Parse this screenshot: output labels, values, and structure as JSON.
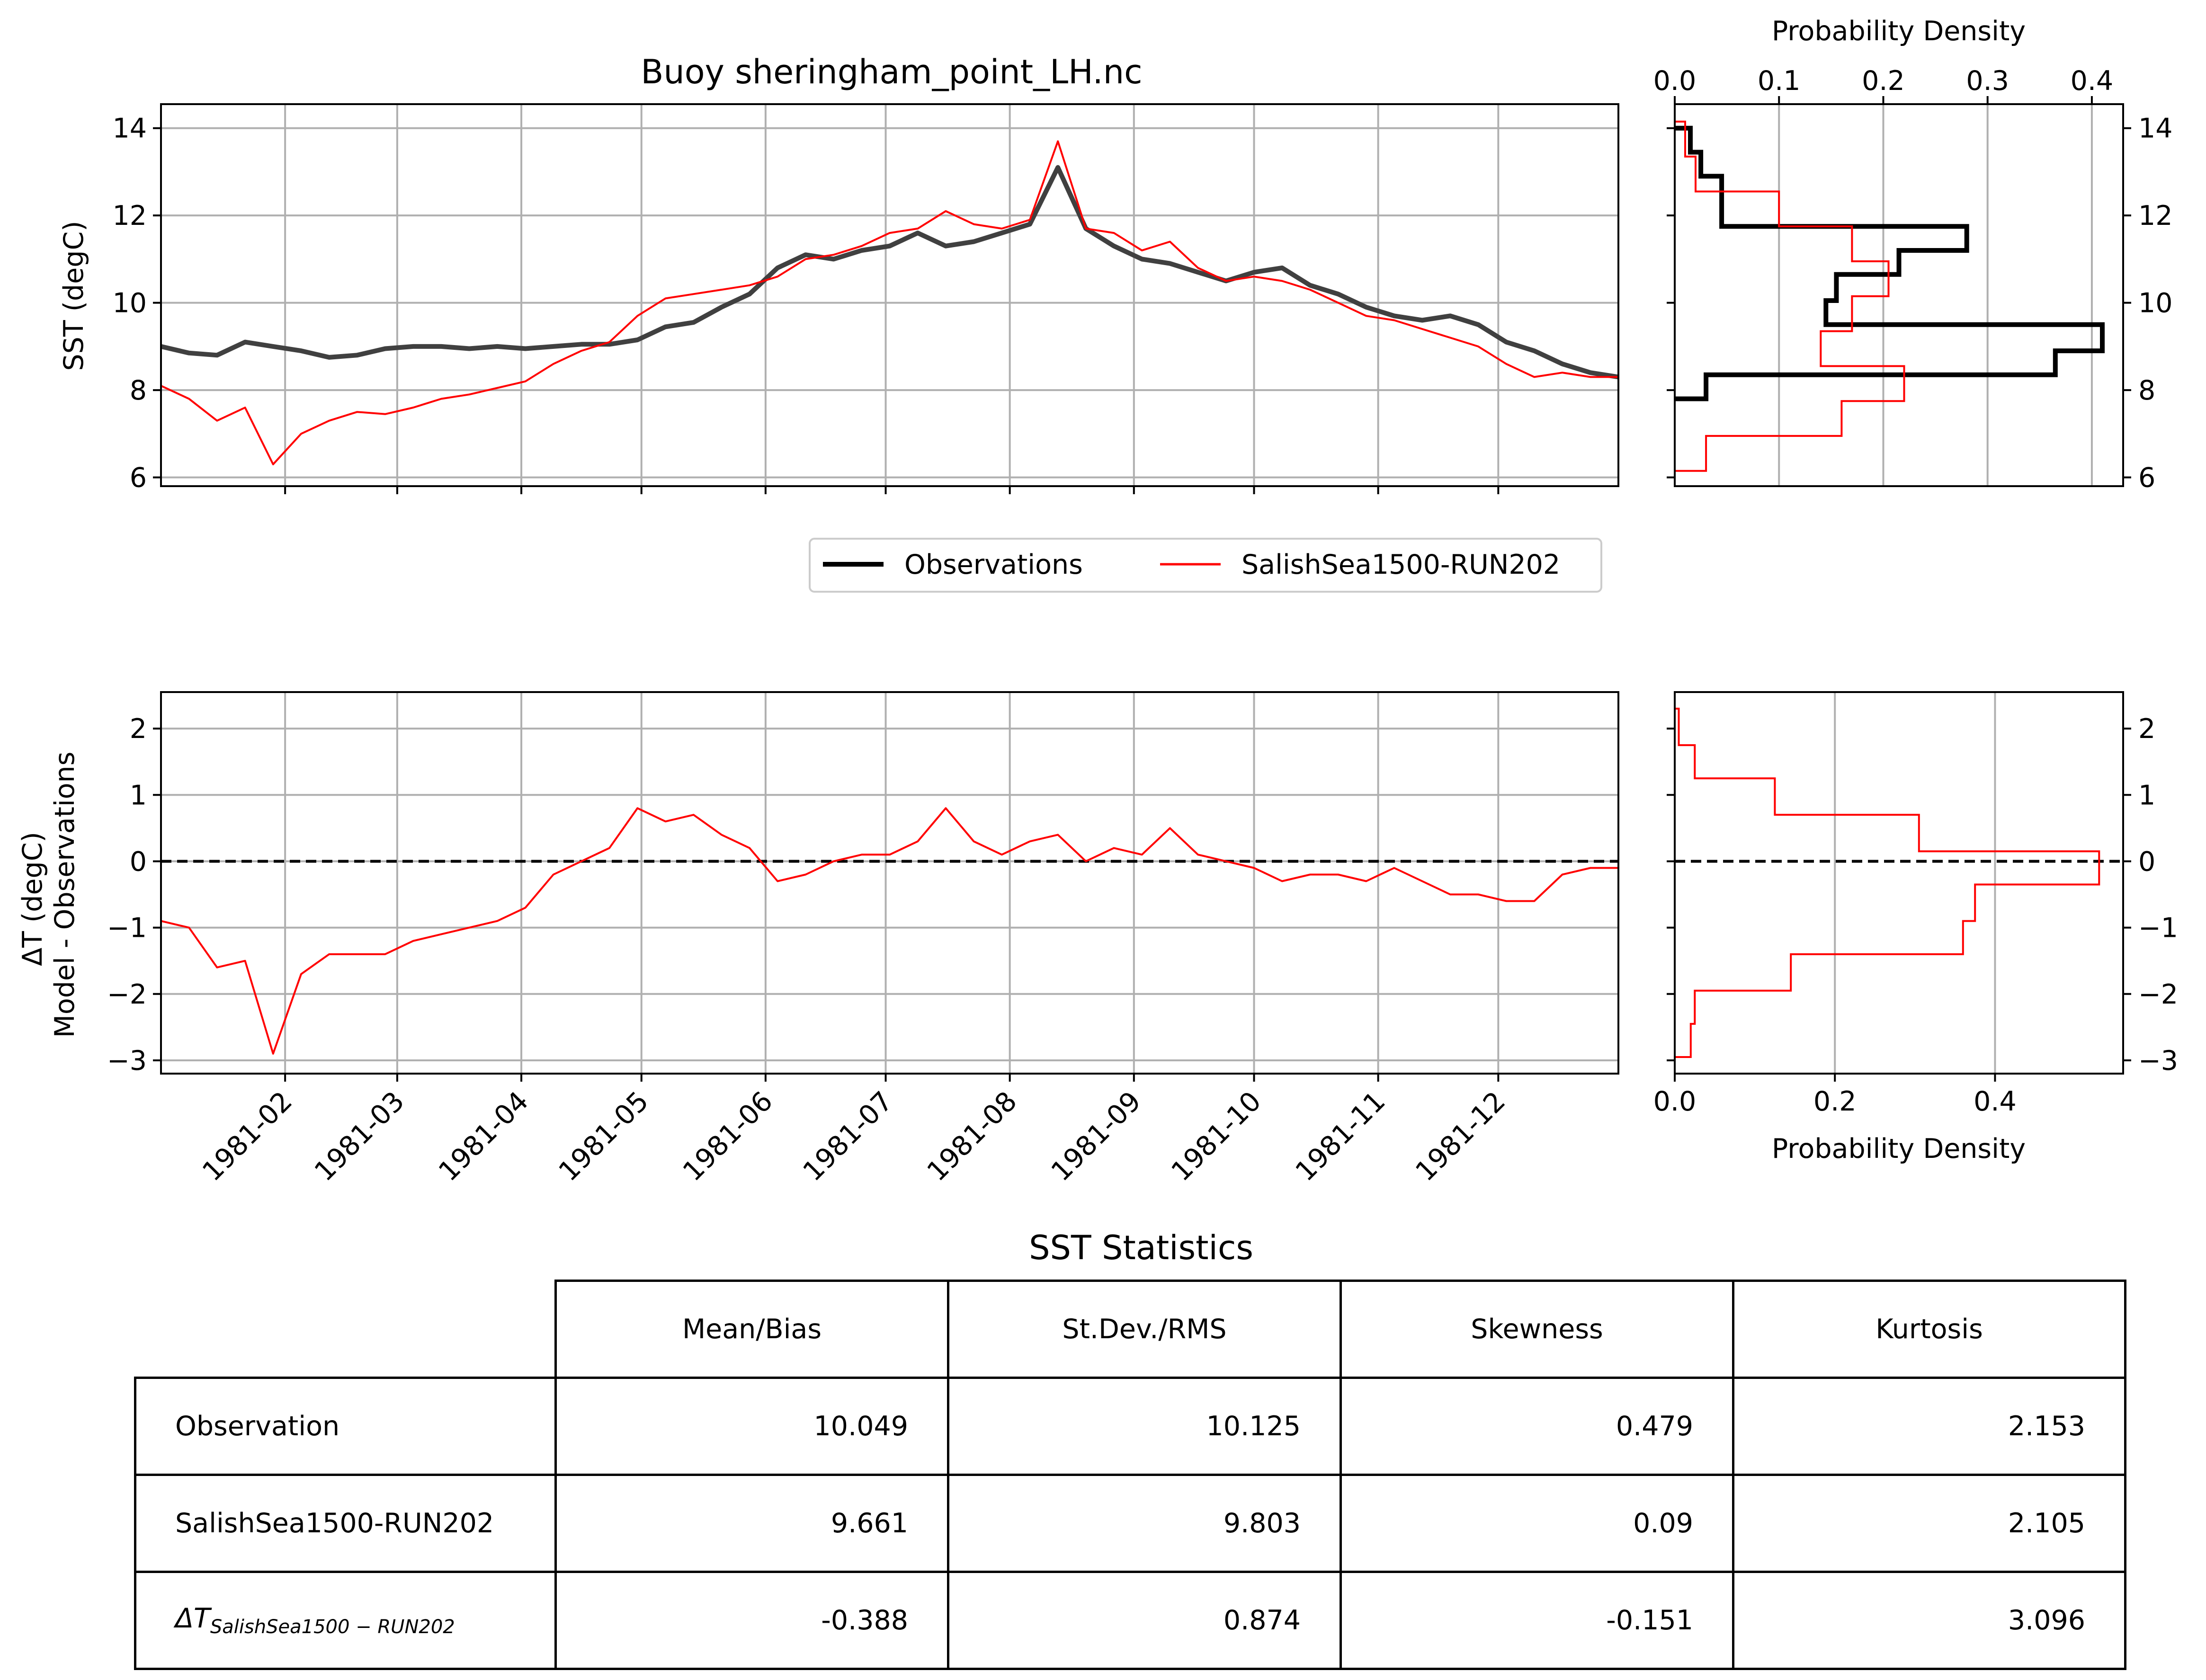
{
  "chart_data": [
    {
      "type": "line",
      "panel": "sst",
      "title": "Buoy sheringham_point_LH.nc",
      "ylabel": "SST (degC)",
      "xlabel": "",
      "x_range": [
        "1981-01-01",
        "1981-12-31"
      ],
      "ylim": [
        5.8,
        14.55
      ],
      "yticks": [
        "6",
        "8",
        "10",
        "12",
        "14"
      ],
      "grid": true,
      "legend_position": "below",
      "series": [
        {
          "name": "Observations",
          "color": "#404040",
          "x": [
            "1981-01-01",
            "1981-01-08",
            "1981-01-15",
            "1981-01-22",
            "1981-01-29",
            "1981-02-05",
            "1981-02-12",
            "1981-02-19",
            "1981-02-26",
            "1981-03-05",
            "1981-03-12",
            "1981-03-19",
            "1981-03-26",
            "1981-04-02",
            "1981-04-09",
            "1981-04-16",
            "1981-04-23",
            "1981-04-30",
            "1981-05-07",
            "1981-05-14",
            "1981-05-21",
            "1981-05-28",
            "1981-06-04",
            "1981-06-11",
            "1981-06-18",
            "1981-06-25",
            "1981-07-02",
            "1981-07-09",
            "1981-07-16",
            "1981-07-23",
            "1981-07-30",
            "1981-08-06",
            "1981-08-13",
            "1981-08-20",
            "1981-08-27",
            "1981-09-03",
            "1981-09-10",
            "1981-09-17",
            "1981-09-24",
            "1981-10-01",
            "1981-10-08",
            "1981-10-15",
            "1981-10-22",
            "1981-10-29",
            "1981-11-05",
            "1981-11-12",
            "1981-11-19",
            "1981-11-26",
            "1981-12-03",
            "1981-12-10",
            "1981-12-17",
            "1981-12-24",
            "1981-12-31"
          ],
          "values": [
            9.0,
            8.85,
            8.8,
            9.1,
            9.0,
            8.9,
            8.75,
            8.8,
            8.95,
            9.0,
            9.0,
            8.95,
            9.0,
            8.95,
            9.0,
            9.05,
            9.05,
            9.15,
            9.45,
            9.55,
            9.9,
            10.2,
            10.8,
            11.1,
            11.0,
            11.2,
            11.3,
            11.6,
            11.3,
            11.4,
            11.6,
            11.8,
            13.1,
            11.7,
            11.3,
            11.0,
            10.9,
            10.7,
            10.5,
            10.7,
            10.8,
            10.4,
            10.2,
            9.9,
            9.7,
            9.6,
            9.7,
            9.5,
            9.1,
            8.9,
            8.6,
            8.4,
            8.3
          ]
        },
        {
          "name": "SalishSea1500-RUN202",
          "color": "#ff0000",
          "x": [
            "1981-01-01",
            "1981-01-08",
            "1981-01-15",
            "1981-01-22",
            "1981-01-29",
            "1981-02-05",
            "1981-02-12",
            "1981-02-19",
            "1981-02-26",
            "1981-03-05",
            "1981-03-12",
            "1981-03-19",
            "1981-03-26",
            "1981-04-02",
            "1981-04-09",
            "1981-04-16",
            "1981-04-23",
            "1981-04-30",
            "1981-05-07",
            "1981-05-14",
            "1981-05-21",
            "1981-05-28",
            "1981-06-04",
            "1981-06-11",
            "1981-06-18",
            "1981-06-25",
            "1981-07-02",
            "1981-07-09",
            "1981-07-16",
            "1981-07-23",
            "1981-07-30",
            "1981-08-06",
            "1981-08-13",
            "1981-08-20",
            "1981-08-27",
            "1981-09-03",
            "1981-09-10",
            "1981-09-17",
            "1981-09-24",
            "1981-10-01",
            "1981-10-08",
            "1981-10-15",
            "1981-10-22",
            "1981-10-29",
            "1981-11-05",
            "1981-11-12",
            "1981-11-19",
            "1981-11-26",
            "1981-12-03",
            "1981-12-10",
            "1981-12-17",
            "1981-12-24",
            "1981-12-31"
          ],
          "values": [
            8.1,
            7.8,
            7.3,
            7.6,
            6.3,
            7.0,
            7.3,
            7.5,
            7.45,
            7.6,
            7.8,
            7.9,
            8.05,
            8.2,
            8.6,
            8.9,
            9.1,
            9.7,
            10.1,
            10.2,
            10.3,
            10.4,
            10.6,
            11.0,
            11.1,
            11.3,
            11.6,
            11.7,
            12.1,
            11.8,
            11.7,
            11.9,
            13.7,
            11.7,
            11.6,
            11.2,
            11.4,
            10.8,
            10.5,
            10.6,
            10.5,
            10.3,
            10.0,
            9.7,
            9.6,
            9.4,
            9.2,
            9.0,
            8.6,
            8.3,
            8.4,
            8.3,
            8.3
          ]
        }
      ]
    },
    {
      "type": "bar",
      "panel": "sst-histogram",
      "orientation": "horizontal-step",
      "xlabel": "Probability Density",
      "xlim": [
        0.0,
        0.43
      ],
      "xticks": [
        "0.0",
        "0.1",
        "0.2",
        "0.3",
        "0.4"
      ],
      "ylim": [
        5.8,
        14.55
      ],
      "yticks": [
        "6",
        "8",
        "10",
        "12",
        "14"
      ],
      "grid": true,
      "series": [
        {
          "name": "Observations",
          "color": "#000000",
          "bin_edges": [
            7.8,
            8.35,
            8.9,
            9.5,
            10.05,
            10.65,
            11.2,
            11.75,
            12.35,
            12.9,
            13.45,
            14.0
          ],
          "values": [
            0.03,
            0.365,
            0.41,
            0.145,
            0.155,
            0.215,
            0.28,
            0.045,
            0.045,
            0.025,
            0.015
          ]
        },
        {
          "name": "SalishSea1500-RUN202",
          "color": "#ff0000",
          "bin_edges": [
            6.15,
            6.95,
            7.75,
            8.55,
            9.35,
            10.15,
            10.95,
            11.75,
            12.55,
            13.35,
            14.15
          ],
          "values": [
            0.03,
            0.16,
            0.22,
            0.14,
            0.17,
            0.205,
            0.17,
            0.1,
            0.02,
            0.01
          ]
        }
      ]
    },
    {
      "type": "line",
      "panel": "difference",
      "ylabel": "ΔT (degC)\nModel - Observations",
      "x_range": [
        "1981-01-01",
        "1981-12-31"
      ],
      "ylim": [
        -3.2,
        2.55
      ],
      "yticks": [
        "2",
        "1",
        "0",
        "−1",
        "−2",
        "−3"
      ],
      "xticks": [
        "1981-02",
        "1981-03",
        "1981-04",
        "1981-05",
        "1981-06",
        "1981-07",
        "1981-08",
        "1981-09",
        "1981-10",
        "1981-11",
        "1981-12"
      ],
      "grid": true,
      "zero_line": 0,
      "series": [
        {
          "name": "SalishSea1500-RUN202",
          "color": "#ff0000",
          "x": [
            "1981-01-01",
            "1981-01-08",
            "1981-01-15",
            "1981-01-22",
            "1981-01-29",
            "1981-02-05",
            "1981-02-12",
            "1981-02-19",
            "1981-02-26",
            "1981-03-05",
            "1981-03-12",
            "1981-03-19",
            "1981-03-26",
            "1981-04-02",
            "1981-04-09",
            "1981-04-16",
            "1981-04-23",
            "1981-04-30",
            "1981-05-07",
            "1981-05-14",
            "1981-05-21",
            "1981-05-28",
            "1981-06-04",
            "1981-06-11",
            "1981-06-18",
            "1981-06-25",
            "1981-07-02",
            "1981-07-09",
            "1981-07-16",
            "1981-07-23",
            "1981-07-30",
            "1981-08-06",
            "1981-08-13",
            "1981-08-20",
            "1981-08-27",
            "1981-09-03",
            "1981-09-10",
            "1981-09-17",
            "1981-09-24",
            "1981-10-01",
            "1981-10-08",
            "1981-10-15",
            "1981-10-22",
            "1981-10-29",
            "1981-11-05",
            "1981-11-12",
            "1981-11-19",
            "1981-11-26",
            "1981-12-03",
            "1981-12-10",
            "1981-12-17",
            "1981-12-24",
            "1981-12-31"
          ],
          "values": [
            -0.9,
            -1.0,
            -1.6,
            -1.5,
            -2.9,
            -1.7,
            -1.4,
            -1.4,
            -1.4,
            -1.2,
            -1.1,
            -1.0,
            -0.9,
            -0.7,
            -0.2,
            0.0,
            0.2,
            0.8,
            0.6,
            0.7,
            0.4,
            0.2,
            -0.3,
            -0.2,
            0.0,
            0.1,
            0.1,
            0.3,
            0.8,
            0.3,
            0.1,
            0.3,
            0.4,
            0.0,
            0.2,
            0.1,
            0.5,
            0.1,
            0.0,
            -0.1,
            -0.3,
            -0.2,
            -0.2,
            -0.3,
            -0.1,
            -0.3,
            -0.5,
            -0.5,
            -0.6,
            -0.6,
            -0.2,
            -0.1,
            -0.1
          ]
        }
      ]
    },
    {
      "type": "bar",
      "panel": "difference-histogram",
      "orientation": "horizontal-step",
      "xlabel": "Probability Density",
      "xlim": [
        0.0,
        0.56
      ],
      "xticks": [
        "0.0",
        "0.2",
        "0.4"
      ],
      "ylim": [
        -3.2,
        2.55
      ],
      "yticks": [
        "2",
        "1",
        "0",
        "−1",
        "−2",
        "−3"
      ],
      "grid": true,
      "zero_line": 0,
      "series": [
        {
          "name": "SalishSea1500-RUN202",
          "color": "#ff0000",
          "bin_edges": [
            -2.95,
            -2.45,
            -1.95,
            -1.4,
            -0.9,
            -0.35,
            0.15,
            0.7,
            1.25,
            1.75,
            2.3
          ],
          "values": [
            0.02,
            0.025,
            0.145,
            0.36,
            0.375,
            0.53,
            0.305,
            0.125,
            0.025,
            0.005
          ]
        }
      ]
    },
    {
      "type": "table",
      "title": "SST Statistics",
      "columns": [
        "Mean/Bias",
        "St.Dev./RMS",
        "Skewness",
        "Kurtosis"
      ],
      "rows": [
        {
          "label": "Observation",
          "values": [
            "10.049",
            "10.125",
            "0.479",
            "2.153"
          ]
        },
        {
          "label": "SalishSea1500-RUN202",
          "values": [
            "9.661",
            "9.803",
            "0.09",
            "2.105"
          ]
        },
        {
          "label_symbol": "ΔT",
          "label_subscript": "SalishSea1500 − RUN202",
          "values": [
            "-0.388",
            "0.874",
            "-0.151",
            "3.096"
          ]
        }
      ]
    }
  ],
  "legend": {
    "items": [
      {
        "label": "Observations",
        "color": "#000000"
      },
      {
        "label": "SalishSea1500-RUN202",
        "color": "#ff0000"
      }
    ]
  }
}
